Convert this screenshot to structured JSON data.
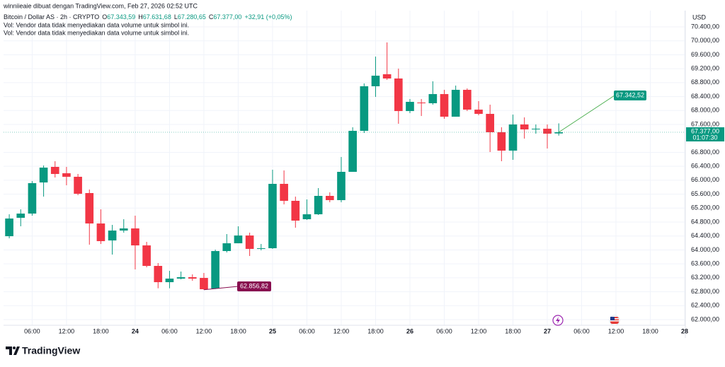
{
  "header": {
    "credit": "winniieaie dibuat dengan TradingView.com, Feb 27, 2026 02:52 UTC",
    "symbol": "Bitcoin / Dollar AS · 2h · CRYPTO",
    "legend_items": [
      {
        "key": "O",
        "text": "67.343,59"
      },
      {
        "key": "H",
        "text": "67.631,68"
      },
      {
        "key": "L",
        "text": "67.280,65"
      },
      {
        "key": "C",
        "text": "67.377,00"
      },
      {
        "text": "+32,91 (+0,05%)"
      }
    ],
    "notes": [
      "Vol: Vendor data tidak menyediakan data volume untuk simbol ini.",
      "Vol: Vendor data tidak menyediakan data volume untuk simbol ini."
    ]
  },
  "chart_data": {
    "type": "candlestick",
    "currency": "USD",
    "up_color": "#089981",
    "down_color": "#f23645",
    "grid": true,
    "open": [
      64394,
      64922,
      65043,
      65936,
      66383,
      66200,
      66099,
      65632,
      64759,
      64272,
      64556,
      64617,
      64130,
      63542,
      63075,
      63177,
      63217,
      63197,
      62893,
      63968,
      64191,
      64414,
      64029,
      64049,
      65896,
      65409,
      64881,
      65023,
      65551,
      65429,
      66241,
      67417,
      68696,
      69041,
      68919,
      67985,
      68229,
      68209,
      68472,
      67823,
      68594,
      68026,
      67904,
      67377,
      66849,
      67600,
      67458,
      67478,
      67343.59
    ],
    "high": [
      65023,
      65165,
      65977,
      66423,
      66545,
      66383,
      66180,
      65733,
      65165,
      64719,
      64881,
      64983,
      64232,
      63623,
      63400,
      63380,
      63298,
      63339,
      64009,
      64455,
      64678,
      64496,
      64171,
      66301,
      66281,
      65530,
      65449,
      65774,
      65652,
      66667,
      67519,
      68777,
      69548,
      69954,
      69203,
      68330,
      68330,
      68838,
      68594,
      68716,
      68635,
      68270,
      68168,
      67519,
      67884,
      67803,
      67600,
      67600,
      67631.68
    ],
    "low": [
      64333,
      64678,
      64983,
      65530,
      66078,
      65855,
      65571,
      64151,
      64171,
      63867,
      64496,
      63441,
      63501,
      62900,
      62900,
      63156,
      63116,
      62856.82,
      62880,
      63927,
      64191,
      63826,
      63988,
      64029,
      65307,
      64638,
      64861,
      65003,
      65368,
      65368,
      66241,
      67356,
      68391,
      68878,
      67620,
      67925,
      67843,
      68168,
      67762,
      67823,
      67985,
      67864,
      66809,
      66545,
      66585,
      67194,
      67336,
      66910,
      67280.65
    ],
    "close": [
      64901,
      65043,
      65916,
      66362,
      66180,
      66099,
      65612,
      64759,
      64252,
      64556,
      64617,
      64130,
      63542,
      63075,
      63177,
      63217,
      63177,
      62872,
      63968,
      64191,
      64414,
      64029,
      64049,
      65896,
      65409,
      64841,
      65023,
      65551,
      65429,
      66241,
      67417,
      68696,
      69000,
      68919,
      67985,
      68249,
      68209,
      68472,
      67823,
      68594,
      68026,
      67904,
      67377,
      66849,
      67600,
      67458,
      67478,
      67336,
      67377
    ],
    "xlim": [
      -0.5,
      59.06
    ],
    "xticks": [
      {
        "value": 2,
        "label": "06:00"
      },
      {
        "value": 5,
        "label": "12:00"
      },
      {
        "value": 8,
        "label": "18:00"
      },
      {
        "value": 11,
        "label": "24"
      },
      {
        "value": 14,
        "label": "06:00"
      },
      {
        "value": 17,
        "label": "12:00"
      },
      {
        "value": 20,
        "label": "18:00"
      },
      {
        "value": 23,
        "label": "25"
      },
      {
        "value": 26,
        "label": "06:00"
      },
      {
        "value": 29,
        "label": "12:00"
      },
      {
        "value": 32,
        "label": "18:00"
      },
      {
        "value": 35,
        "label": "26"
      },
      {
        "value": 38,
        "label": "06:00"
      },
      {
        "value": 41,
        "label": "12:00"
      },
      {
        "value": 44,
        "label": "18:00"
      },
      {
        "value": 47,
        "label": "27"
      },
      {
        "value": 50,
        "label": "06:00"
      },
      {
        "value": 53,
        "label": "12:00"
      },
      {
        "value": 56,
        "label": "18:00"
      },
      {
        "value": 59,
        "label": "28"
      }
    ],
    "ylim": [
      61838,
      70867
    ],
    "yticks": [
      {
        "value": 70400,
        "label": "70.400,00"
      },
      {
        "value": 70000,
        "label": "70.000,00"
      },
      {
        "value": 69600,
        "label": "69.600,00"
      },
      {
        "value": 69200,
        "label": "69.200,00"
      },
      {
        "value": 68800,
        "label": "68.800,00"
      },
      {
        "value": 68400,
        "label": "68.400,00"
      },
      {
        "value": 68000,
        "label": "68.000,00"
      },
      {
        "value": 67600,
        "label": "67.600,00"
      },
      {
        "value": 66800,
        "label": "66.800,00"
      },
      {
        "value": 66400,
        "label": "66.400,00"
      },
      {
        "value": 66000,
        "label": "66.000,00"
      },
      {
        "value": 65600,
        "label": "65.600,00"
      },
      {
        "value": 65200,
        "label": "65.200,00"
      },
      {
        "value": 64800,
        "label": "64.800,00"
      },
      {
        "value": 64400,
        "label": "64.400,00"
      },
      {
        "value": 64000,
        "label": "64.000,00"
      },
      {
        "value": 63600,
        "label": "63.600,00"
      },
      {
        "value": 63200,
        "label": "63.200,00"
      },
      {
        "value": 62800,
        "label": "62.800,00"
      },
      {
        "value": 62400,
        "label": "62.400,00"
      },
      {
        "value": 62000,
        "label": "62.000,00"
      }
    ],
    "last_price": {
      "value": 67377,
      "label": "67.377,00",
      "countdown": "01:07:30"
    },
    "annotations": [
      "62.856,82",
      "67.342,52"
    ]
  },
  "brand": "TradingView"
}
